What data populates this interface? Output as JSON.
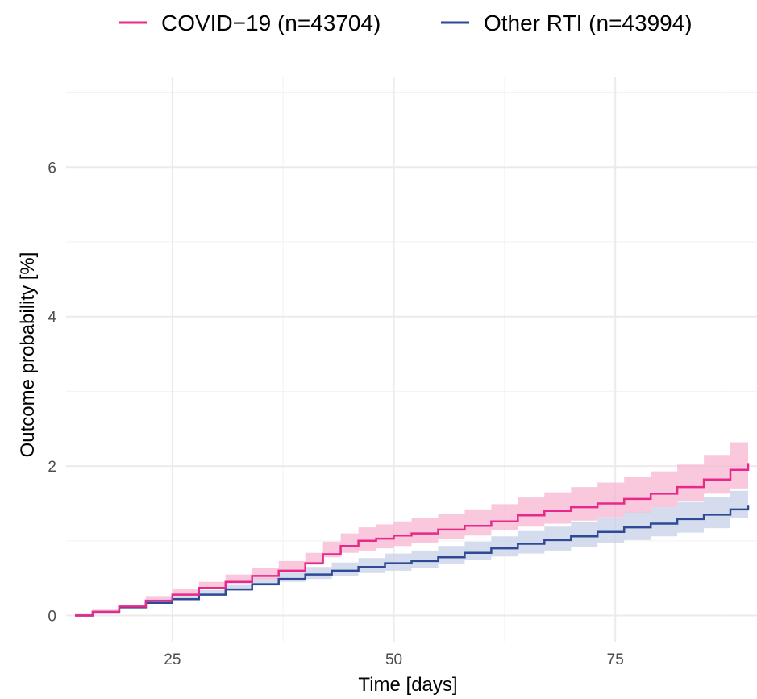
{
  "chart_data": {
    "type": "line",
    "xlabel": "Time [days]",
    "ylabel": "Outcome probability [%]",
    "xlim": [
      13,
      91
    ],
    "ylim": [
      -0.35,
      7.2
    ],
    "x_ticks": [
      25,
      50,
      75
    ],
    "y_ticks": [
      0,
      2,
      4,
      6
    ],
    "grid": true,
    "legend_position": "top",
    "series": [
      {
        "name": "COVID−19 (n=43704)",
        "color": "#e7298a",
        "band_color": "#f7b6d2",
        "x": [
          14,
          16,
          19,
          22,
          25,
          28,
          31,
          34,
          37,
          40,
          42,
          44,
          46,
          48,
          50,
          52,
          55,
          58,
          61,
          64,
          67,
          70,
          73,
          76,
          79,
          82,
          85,
          88,
          90
        ],
        "y": [
          0,
          0.05,
          0.12,
          0.2,
          0.28,
          0.37,
          0.45,
          0.53,
          0.6,
          0.7,
          0.82,
          0.93,
          1.0,
          1.03,
          1.07,
          1.1,
          1.15,
          1.2,
          1.26,
          1.34,
          1.4,
          1.45,
          1.5,
          1.56,
          1.63,
          1.72,
          1.82,
          1.95,
          2.04
        ],
        "lower": [
          0,
          0.03,
          0.09,
          0.16,
          0.22,
          0.29,
          0.36,
          0.43,
          0.49,
          0.58,
          0.68,
          0.78,
          0.84,
          0.87,
          0.9,
          0.93,
          0.97,
          1.02,
          1.07,
          1.14,
          1.19,
          1.23,
          1.27,
          1.32,
          1.38,
          1.45,
          1.53,
          1.63,
          1.7
        ],
        "upper": [
          0,
          0.08,
          0.16,
          0.26,
          0.35,
          0.45,
          0.55,
          0.64,
          0.73,
          0.84,
          0.99,
          1.1,
          1.18,
          1.22,
          1.26,
          1.3,
          1.36,
          1.42,
          1.49,
          1.58,
          1.65,
          1.72,
          1.78,
          1.85,
          1.93,
          2.02,
          2.15,
          2.32,
          2.42
        ]
      },
      {
        "name": "Other RTI (n=43994)",
        "color": "#2e4a94",
        "band_color": "#c7d0e8",
        "x": [
          14,
          16,
          19,
          22,
          25,
          28,
          31,
          34,
          37,
          40,
          43,
          46,
          49,
          52,
          55,
          58,
          61,
          64,
          67,
          70,
          73,
          76,
          79,
          82,
          85,
          88,
          90
        ],
        "y": [
          0,
          0.05,
          0.11,
          0.17,
          0.22,
          0.28,
          0.35,
          0.42,
          0.49,
          0.55,
          0.6,
          0.65,
          0.7,
          0.73,
          0.78,
          0.84,
          0.9,
          0.96,
          1.01,
          1.06,
          1.12,
          1.18,
          1.23,
          1.29,
          1.35,
          1.42,
          1.48
        ],
        "lower": [
          0,
          0.03,
          0.08,
          0.13,
          0.17,
          0.22,
          0.28,
          0.34,
          0.4,
          0.45,
          0.49,
          0.53,
          0.57,
          0.6,
          0.64,
          0.69,
          0.74,
          0.79,
          0.83,
          0.87,
          0.92,
          0.97,
          1.01,
          1.06,
          1.11,
          1.17,
          1.3
        ],
        "upper": [
          0,
          0.07,
          0.14,
          0.21,
          0.27,
          0.34,
          0.42,
          0.5,
          0.58,
          0.65,
          0.71,
          0.77,
          0.83,
          0.87,
          0.93,
          0.99,
          1.06,
          1.13,
          1.19,
          1.25,
          1.32,
          1.39,
          1.45,
          1.52,
          1.59,
          1.67,
          1.72
        ]
      }
    ]
  }
}
